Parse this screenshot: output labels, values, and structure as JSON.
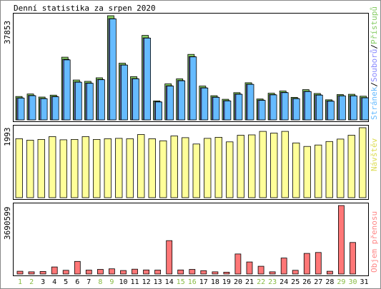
{
  "chart_data": [
    {
      "type": "bar",
      "title": "Denní statistika za srpen 2020",
      "axis_max_label": "37853",
      "ylim": [
        0,
        37853
      ],
      "categories": [
        "1",
        "2",
        "3",
        "4",
        "5",
        "6",
        "7",
        "8",
        "9",
        "10",
        "11",
        "12",
        "13",
        "14",
        "15",
        "16",
        "17",
        "18",
        "19",
        "20",
        "21",
        "22",
        "23",
        "24",
        "25",
        "26",
        "27",
        "28",
        "29",
        "30",
        "31"
      ],
      "weekend_categories": [
        "1",
        "2",
        "8",
        "9",
        "15",
        "16",
        "22",
        "23",
        "29",
        "30"
      ],
      "legend": [
        "Stránek",
        "Souborů",
        "Přístupů"
      ],
      "series": [
        {
          "name": "Přístupů",
          "values": [
            8500,
            9400,
            8300,
            9000,
            22800,
            14500,
            14000,
            15300,
            37853,
            20600,
            15700,
            30700,
            6900,
            13100,
            14900,
            23800,
            12300,
            8800,
            7500,
            9900,
            13500,
            7600,
            9700,
            10500,
            8200,
            11000,
            9600,
            7300,
            9200,
            9300,
            8600
          ]
        },
        {
          "name": "Souborů",
          "values": [
            8000,
            8900,
            7800,
            8500,
            22000,
            13800,
            13400,
            14700,
            36800,
            20000,
            15000,
            29800,
            6600,
            12400,
            14300,
            23000,
            11700,
            8300,
            7000,
            9400,
            13000,
            7200,
            9200,
            10000,
            7800,
            10400,
            9100,
            6900,
            8800,
            8800,
            8100
          ]
        },
        {
          "name": "Stránek",
          "values": [
            7900,
            8800,
            7700,
            8400,
            21800,
            13700,
            13300,
            14600,
            36700,
            19900,
            14900,
            29700,
            6500,
            12300,
            14200,
            22900,
            11600,
            8200,
            6900,
            9300,
            12900,
            7100,
            9100,
            9900,
            7700,
            10300,
            9000,
            6800,
            8700,
            8700,
            8000
          ]
        }
      ],
      "colors": {
        "Přístupů": "#88cc66",
        "Souborů": "#8888ff",
        "Stránek": "#66bbff"
      }
    },
    {
      "type": "bar",
      "axis_max_label": "1993",
      "ylim": [
        0,
        1993
      ],
      "legend": [
        "Návštěv"
      ],
      "series": [
        {
          "name": "Návštěv",
          "values": [
            1680,
            1640,
            1660,
            1740,
            1650,
            1660,
            1740,
            1660,
            1680,
            1690,
            1680,
            1800,
            1680,
            1620,
            1760,
            1710,
            1530,
            1690,
            1720,
            1590,
            1780,
            1790,
            1890,
            1840,
            1890,
            1560,
            1460,
            1500,
            1600,
            1670,
            1780,
            1993
          ]
        }
      ],
      "colors": {
        "Návštěv": "#ffff99"
      }
    },
    {
      "type": "bar",
      "axis_max_label": "3690599",
      "ylim": [
        0,
        3690599
      ],
      "legend": [
        "Objem přenosu"
      ],
      "series": [
        {
          "name": "Objem přenosu",
          "values": [
            150000,
            120000,
            140000,
            380000,
            200000,
            680000,
            210000,
            250000,
            280000,
            190000,
            260000,
            220000,
            210000,
            1800000,
            220000,
            250000,
            180000,
            120000,
            100000,
            1080000,
            650000,
            420000,
            120000,
            860000,
            200000,
            1110000,
            1160000,
            150000,
            3690599,
            1700000
          ]
        }
      ],
      "colors": {
        "Objem přenosu": "#ff7777"
      }
    }
  ],
  "theme": {
    "axis_color": "#000000",
    "weekday_label_color": "#000000",
    "weekend_label_color": "#88bb44",
    "legend_colors": {
      "Stránek": "#66bbff",
      "Souborů": "#8888ff",
      "Přístupů": "#88cc66",
      "Návštěv": "#dddd55",
      "Objem přenosu": "#ff8888"
    }
  }
}
